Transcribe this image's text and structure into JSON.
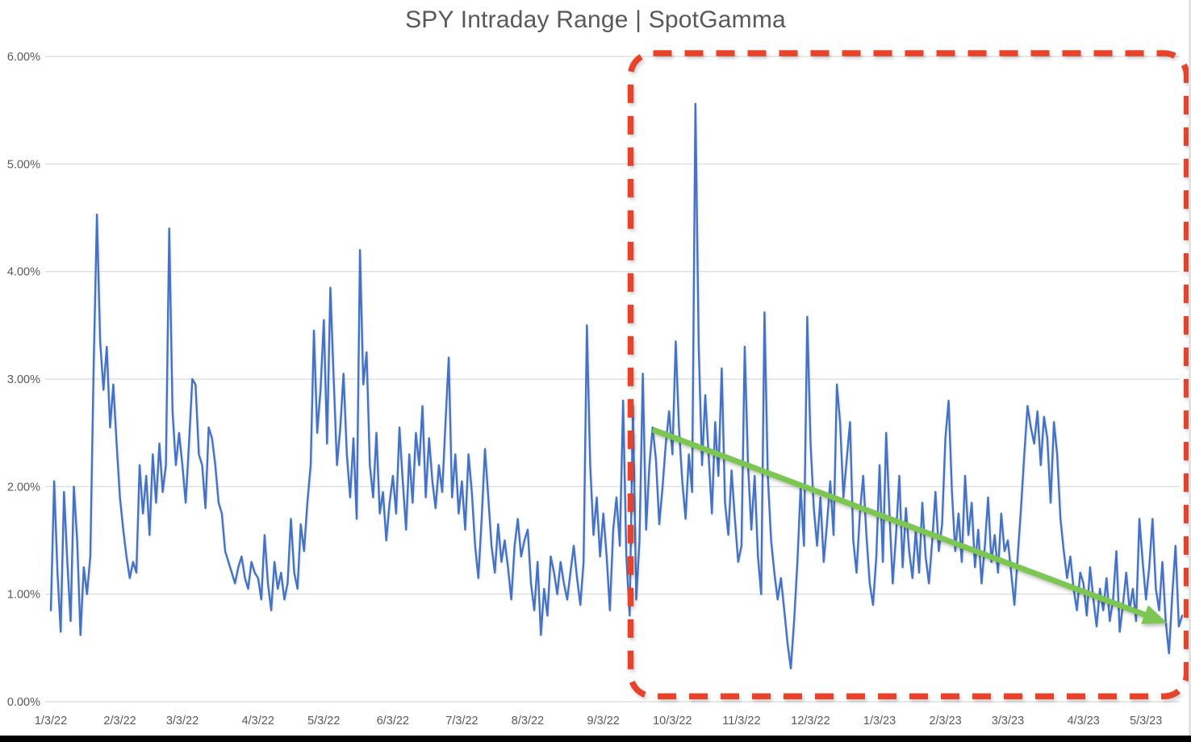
{
  "title": "SPY Intraday Range | SpotGamma",
  "colors": {
    "line": "#4472C4",
    "highlight_box": "#E8432A",
    "trend_arrow": "#7CC652",
    "grid": "#D9D9D9",
    "axis_text": "#595959",
    "background": "#FFFFFF",
    "bottom_bar": "#000000"
  },
  "chart_data": {
    "type": "line",
    "title": "SPY Intraday Range | SpotGamma",
    "xlabel": "",
    "ylabel": "",
    "ylim": [
      0,
      6
    ],
    "grid": true,
    "legend_position": "none",
    "y_ticks": [
      {
        "pct": 6,
        "label": "6.00%"
      },
      {
        "pct": 5,
        "label": "5.00%"
      },
      {
        "pct": 4,
        "label": "4.00%"
      },
      {
        "pct": 3,
        "label": "3.00%"
      },
      {
        "pct": 2,
        "label": "2.00%"
      },
      {
        "pct": 1,
        "label": "1.00%"
      },
      {
        "pct": 0,
        "label": "0.00%"
      }
    ],
    "x_ticks": [
      {
        "day": 0,
        "label": "1/3/22"
      },
      {
        "day": 21,
        "label": "2/3/22"
      },
      {
        "day": 40,
        "label": "3/3/22"
      },
      {
        "day": 63,
        "label": "4/3/22"
      },
      {
        "day": 83,
        "label": "5/3/22"
      },
      {
        "day": 104,
        "label": "6/3/22"
      },
      {
        "day": 125,
        "label": "7/3/22"
      },
      {
        "day": 145,
        "label": "8/3/22"
      },
      {
        "day": 168,
        "label": "9/3/22"
      },
      {
        "day": 189,
        "label": "10/3/22"
      },
      {
        "day": 210,
        "label": "11/3/22"
      },
      {
        "day": 231,
        "label": "12/3/22"
      },
      {
        "day": 252,
        "label": "1/3/23"
      },
      {
        "day": 272,
        "label": "2/3/23"
      },
      {
        "day": 291,
        "label": "3/3/23"
      },
      {
        "day": 314,
        "label": "4/3/23"
      },
      {
        "day": 333,
        "label": "5/3/23"
      }
    ],
    "series": [
      {
        "name": "SPY daily intraday range (%)",
        "color": "#4472C4",
        "values": [
          0.85,
          2.05,
          1.2,
          0.65,
          1.95,
          1.3,
          0.75,
          2.0,
          1.5,
          0.62,
          1.25,
          1.0,
          1.35,
          3.1,
          4.53,
          3.35,
          2.9,
          3.3,
          2.55,
          2.95,
          2.4,
          1.9,
          1.6,
          1.35,
          1.15,
          1.3,
          1.2,
          2.2,
          1.75,
          2.1,
          1.55,
          2.3,
          1.85,
          2.4,
          1.95,
          2.2,
          4.4,
          2.7,
          2.2,
          2.5,
          2.2,
          1.85,
          2.4,
          3.0,
          2.95,
          2.3,
          2.2,
          1.8,
          2.55,
          2.45,
          2.2,
          1.85,
          1.75,
          1.4,
          1.3,
          1.2,
          1.1,
          1.25,
          1.35,
          1.15,
          1.05,
          1.3,
          1.2,
          1.15,
          0.95,
          1.55,
          1.1,
          0.85,
          1.3,
          1.05,
          1.2,
          0.95,
          1.1,
          1.7,
          1.2,
          1.05,
          1.65,
          1.4,
          1.85,
          2.2,
          3.45,
          2.5,
          2.9,
          3.55,
          2.4,
          3.85,
          3.0,
          2.2,
          2.55,
          3.05,
          2.3,
          1.9,
          2.45,
          1.7,
          4.2,
          2.95,
          3.25,
          2.2,
          1.9,
          2.5,
          1.75,
          1.95,
          1.5,
          1.85,
          2.1,
          1.75,
          2.55,
          2.05,
          1.6,
          2.3,
          1.85,
          2.5,
          2.2,
          2.75,
          1.9,
          2.45,
          2.05,
          1.8,
          2.2,
          1.95,
          2.6,
          3.2,
          1.9,
          2.3,
          1.75,
          2.05,
          1.6,
          2.3,
          1.95,
          1.45,
          1.15,
          1.7,
          2.35,
          1.9,
          1.45,
          1.2,
          1.65,
          1.3,
          1.5,
          1.25,
          0.95,
          1.45,
          1.7,
          1.35,
          1.5,
          1.6,
          1.1,
          0.85,
          1.3,
          0.62,
          1.05,
          0.8,
          1.35,
          1.2,
          1.0,
          1.3,
          1.1,
          0.95,
          1.2,
          1.45,
          1.15,
          0.9,
          1.3,
          3.5,
          2.2,
          1.55,
          1.9,
          1.35,
          1.75,
          1.35,
          0.85,
          1.6,
          1.9,
          1.45,
          2.8,
          1.35,
          0.8,
          2.75,
          0.95,
          1.5,
          3.05,
          1.6,
          2.2,
          2.55,
          2.25,
          1.65,
          2.0,
          2.4,
          2.7,
          2.3,
          3.35,
          2.55,
          2.05,
          1.7,
          2.3,
          1.95,
          5.56,
          3.3,
          2.2,
          2.85,
          2.3,
          1.75,
          2.6,
          2.1,
          3.1,
          1.85,
          1.55,
          2.15,
          1.7,
          1.3,
          1.45,
          3.3,
          2.2,
          1.6,
          2.1,
          1.35,
          1.0,
          3.62,
          2.1,
          1.5,
          1.2,
          0.95,
          1.15,
          0.85,
          0.55,
          0.31,
          0.75,
          1.3,
          2.0,
          1.45,
          3.58,
          2.4,
          1.8,
          1.45,
          1.9,
          1.3,
          1.65,
          2.05,
          1.55,
          2.95,
          2.6,
          1.9,
          2.25,
          2.6,
          1.5,
          1.2,
          1.75,
          2.1,
          1.55,
          1.1,
          0.9,
          1.35,
          2.2,
          1.3,
          2.5,
          1.75,
          1.1,
          1.55,
          2.1,
          1.25,
          1.8,
          1.4,
          1.15,
          1.6,
          1.2,
          1.85,
          1.35,
          1.1,
          1.5,
          1.95,
          1.4,
          1.65,
          2.45,
          2.8,
          1.95,
          1.4,
          1.75,
          1.3,
          2.1,
          1.55,
          1.85,
          1.25,
          1.6,
          1.1,
          1.45,
          1.9,
          1.3,
          1.55,
          1.2,
          1.75,
          1.4,
          1.5,
          1.2,
          0.9,
          1.35,
          1.8,
          2.3,
          2.75,
          2.55,
          2.4,
          2.7,
          2.2,
          2.65,
          2.45,
          1.85,
          2.6,
          2.3,
          1.7,
          1.4,
          1.15,
          1.35,
          1.05,
          0.85,
          1.2,
          1.1,
          0.8,
          1.25,
          0.95,
          0.7,
          1.05,
          0.85,
          1.15,
          0.75,
          0.95,
          1.4,
          0.65,
          0.9,
          1.2,
          0.85,
          1.05,
          0.75,
          1.7,
          1.3,
          0.95,
          1.25,
          1.7,
          1.05,
          0.85,
          1.3,
          0.75,
          0.45,
          1.0,
          1.45,
          0.7,
          0.8
        ]
      }
    ],
    "annotations": {
      "highlight_box": {
        "shape": "dashed-rounded-rect",
        "meaning": "highlights period from ~mid-Sept 2022 to May 2023",
        "color": "#E8432A",
        "x_day_start": 176.3,
        "x_day_end": 345.4,
        "pct_bottom": 0.05,
        "pct_top": 6.03,
        "corner_radius": 28,
        "stroke_width": 7.5,
        "dash": [
          23,
          16
        ]
      },
      "trend_arrow": {
        "shape": "arrow",
        "meaning": "declining intraday range trend",
        "color": "#7CC652",
        "from_day": 183,
        "from_pct": 2.53,
        "to_day": 339.5,
        "to_pct": 0.73,
        "stroke_width": 7
      }
    }
  }
}
